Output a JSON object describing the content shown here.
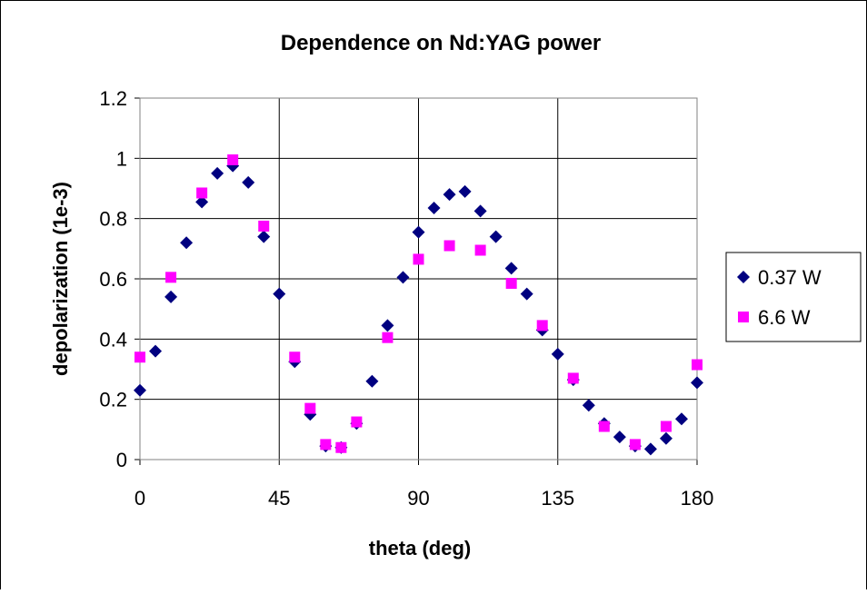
{
  "chart_data": {
    "type": "scatter",
    "title": "Dependence on Nd:YAG power",
    "x_label": "theta (deg)",
    "y_label": "depolarization (1e-3)",
    "xlim": [
      0,
      180
    ],
    "xticks": [
      0,
      45,
      90,
      135,
      180
    ],
    "ylim": [
      0,
      1.2
    ],
    "yticks": [
      0,
      {
        "value": 0.2,
        "label": "0.2"
      },
      {
        "value": 0.4,
        "label": "0.4"
      },
      {
        "value": 0.6,
        "label": "0.6"
      },
      {
        "value": 0.8,
        "label": "0.8"
      },
      1,
      {
        "value": 1.2,
        "label": "1.2"
      }
    ],
    "grid": true,
    "legend": "right",
    "series": [
      {
        "name": "0.37 W",
        "color": "#000080",
        "marker": "diamond",
        "x": [
          0,
          5,
          10,
          15,
          20,
          25,
          30,
          35,
          40,
          45,
          50,
          55,
          60,
          65,
          70,
          75,
          80,
          85,
          90,
          95,
          100,
          105,
          110,
          115,
          120,
          125,
          130,
          135,
          140,
          145,
          150,
          155,
          160,
          165,
          170,
          175,
          180
        ],
        "values": [
          0.23,
          0.36,
          0.54,
          0.72,
          0.855,
          0.95,
          0.975,
          0.92,
          0.74,
          0.55,
          0.325,
          0.15,
          0.045,
          0.04,
          0.12,
          0.26,
          0.445,
          0.605,
          0.755,
          0.835,
          0.88,
          0.89,
          0.825,
          0.74,
          0.635,
          0.55,
          0.43,
          0.35,
          0.265,
          0.18,
          0.12,
          0.075,
          0.045,
          0.035,
          0.07,
          0.135,
          0.255
        ]
      },
      {
        "name": "6.6 W",
        "color": "#ff00ff",
        "marker": "square",
        "x": [
          0,
          10,
          20,
          30,
          40,
          50,
          55,
          60,
          65,
          70,
          80,
          90,
          100,
          110,
          120,
          130,
          140,
          150,
          160,
          170,
          180
        ],
        "values": [
          0.34,
          0.605,
          0.885,
          0.995,
          0.775,
          0.34,
          0.17,
          0.05,
          0.04,
          0.125,
          0.405,
          0.665,
          0.71,
          0.695,
          0.585,
          0.445,
          0.27,
          0.11,
          0.05,
          0.11,
          0.315
        ]
      }
    ]
  }
}
